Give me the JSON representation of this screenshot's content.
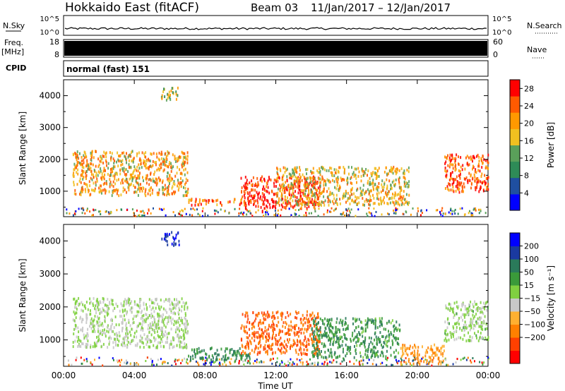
{
  "header": {
    "title": "Hokkaido East (fitACF)",
    "beam": "Beam 03",
    "date_range": "11/Jan/2017 – 12/Jan/2017"
  },
  "strip": {
    "nsky_label": "N.Sky",
    "nsky_ticks": [
      "10^5",
      "10^0"
    ],
    "nsearch_label": "N.Search",
    "nsearch_ticks": [
      "10^5",
      "10^0"
    ],
    "freq_label": "Freq.",
    "freq_unit": "[MHz]",
    "freq_ticks": [
      "18",
      "8"
    ],
    "nave_label": "Nave",
    "nave_ticks": [
      "60",
      "0"
    ],
    "cpid_label": "CPID",
    "cpid_text": "normal (fast) 151"
  },
  "colors": {
    "power_scale": [
      "#0000ff",
      "#1f4fa0",
      "#2e8b57",
      "#5aa05a",
      "#f0c020",
      "#ff9900",
      "#ff5a00",
      "#ff0000"
    ],
    "velocity_scale": [
      "#ff0000",
      "#ff4000",
      "#ff8000",
      "#ffb030",
      "#c8c8c8",
      "#80d040",
      "#3a9a3a",
      "#2a7a5a",
      "#1a3aa0",
      "#0000ff"
    ],
    "ground_scatter": "#b0b0b0"
  },
  "chart_data": [
    {
      "type": "heatmap",
      "name": "power",
      "ylabel": "Slant Range [km]",
      "xlabel": "",
      "xlim": [
        0,
        24
      ],
      "ylim": [
        200,
        4500
      ],
      "xtick_labels": [
        "00:00",
        "04:00",
        "08:00",
        "12:00",
        "16:00",
        "20:00",
        "00:00"
      ],
      "ytick_labels": [
        "1000",
        "2000",
        "3000",
        "4000"
      ],
      "colorbar_label": "Power [dB]",
      "colorbar_ticks": [
        "4",
        "8",
        "12",
        "16",
        "20",
        "24",
        "28"
      ],
      "colorbar_range": [
        0,
        30
      ],
      "regions": [
        {
          "t": [
            0.5,
            7.0
          ],
          "r": [
            900,
            2300
          ],
          "level": 0.65
        },
        {
          "t": [
            7.0,
            10.5
          ],
          "r": [
            600,
            800
          ],
          "level": 0.8
        },
        {
          "t": [
            10.0,
            14.5
          ],
          "r": [
            500,
            1500
          ],
          "level": 0.95
        },
        {
          "t": [
            12.0,
            19.5
          ],
          "r": [
            600,
            1800
          ],
          "level": 0.6
        },
        {
          "t": [
            21.5,
            24.0
          ],
          "r": [
            1000,
            2200
          ],
          "level": 0.85
        },
        {
          "t": [
            5.5,
            6.5
          ],
          "r": [
            3900,
            4300
          ],
          "level": 0.5
        }
      ]
    },
    {
      "type": "heatmap",
      "name": "velocity",
      "ylabel": "Slant Range [km]",
      "xlabel": "Time UT",
      "xlim": [
        0,
        24
      ],
      "ylim": [
        200,
        4500
      ],
      "xtick_labels": [
        "00:00",
        "04:00",
        "08:00",
        "12:00",
        "16:00",
        "20:00",
        "00:00"
      ],
      "ytick_labels": [
        "1000",
        "2000",
        "3000",
        "4000"
      ],
      "colorbar_label": "Velocity [m s⁻¹]",
      "colorbar_ticks": [
        "200",
        "100",
        "50",
        "15",
        "−15",
        "−50",
        "−100",
        "−200"
      ],
      "colorbar_range": [
        -250,
        250
      ],
      "regions": [
        {
          "t": [
            0.5,
            7.0
          ],
          "r": [
            800,
            2300
          ],
          "level": 0.0
        },
        {
          "t": [
            7.0,
            10.5
          ],
          "r": [
            400,
            800
          ],
          "level": 0.4
        },
        {
          "t": [
            10.0,
            14.5
          ],
          "r": [
            600,
            1900
          ],
          "level": -0.6
        },
        {
          "t": [
            14.0,
            19.0
          ],
          "r": [
            500,
            1700
          ],
          "level": 0.35
        },
        {
          "t": [
            19.0,
            21.5
          ],
          "r": [
            300,
            900
          ],
          "level": -0.4
        },
        {
          "t": [
            21.5,
            24.0
          ],
          "r": [
            1000,
            2200
          ],
          "level": 0.05
        },
        {
          "t": [
            5.5,
            6.5
          ],
          "r": [
            3900,
            4300
          ],
          "level": 0.8
        }
      ]
    }
  ]
}
